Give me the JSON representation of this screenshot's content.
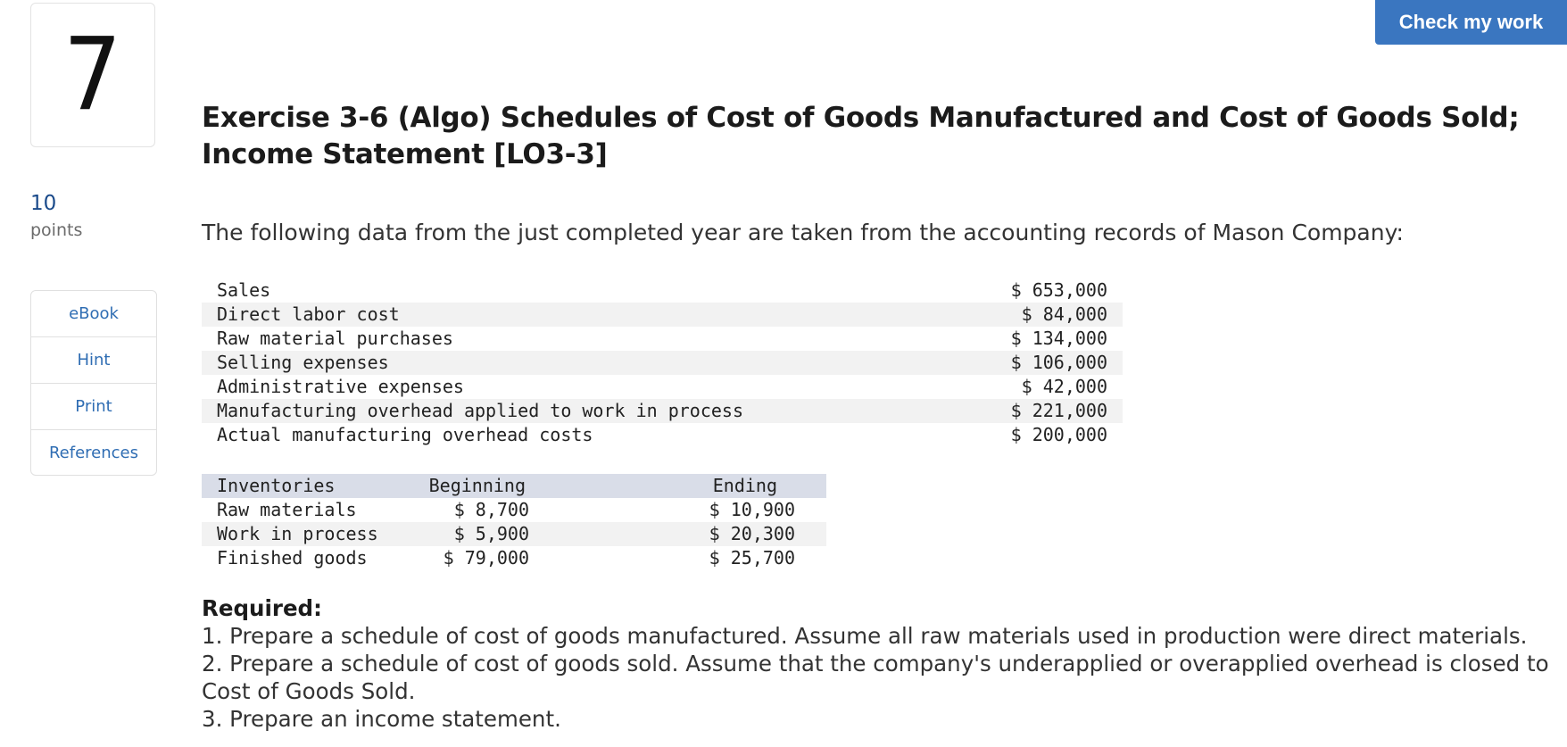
{
  "question": {
    "number": "7",
    "points_value": "10",
    "points_label": "points"
  },
  "side_menu": {
    "items": [
      {
        "label": "eBook"
      },
      {
        "label": "Hint"
      },
      {
        "label": "Print"
      },
      {
        "label": "References"
      }
    ]
  },
  "toolbar": {
    "check_label": "Check my work"
  },
  "exercise": {
    "title": "Exercise 3-6 (Algo) Schedules of Cost of Goods Manufactured and Cost of Goods Sold; Income Statement [LO3-3]",
    "intro": "The following data from the just completed year are taken from the accounting records of Mason Company:"
  },
  "data_table": {
    "rows": [
      {
        "label": "Sales",
        "value": "$ 653,000"
      },
      {
        "label": "Direct labor cost",
        "value": "$ 84,000"
      },
      {
        "label": "Raw material purchases",
        "value": "$ 134,000"
      },
      {
        "label": "Selling expenses",
        "value": "$ 106,000"
      },
      {
        "label": "Administrative expenses",
        "value": "$ 42,000"
      },
      {
        "label": "Manufacturing overhead applied to work in process",
        "value": "$ 221,000"
      },
      {
        "label": "Actual manufacturing overhead costs",
        "value": "$ 200,000"
      }
    ]
  },
  "inventory_table": {
    "headers": [
      "Inventories",
      "Beginning",
      "Ending"
    ],
    "rows": [
      {
        "name": "Raw materials",
        "beginning": "$ 8,700",
        "ending": "$ 10,900"
      },
      {
        "name": "Work in process",
        "beginning": "$ 5,900",
        "ending": "$ 20,300"
      },
      {
        "name": "Finished goods",
        "beginning": "$ 79,000",
        "ending": "$ 25,700"
      }
    ]
  },
  "required": {
    "heading": "Required:",
    "items": [
      "1. Prepare a schedule of cost of goods manufactured. Assume all raw materials used in production were direct materials.",
      "2. Prepare a schedule of cost of goods sold. Assume that the company's underapplied or overapplied overhead is closed to Cost of Goods Sold.",
      "3. Prepare an income statement."
    ]
  }
}
